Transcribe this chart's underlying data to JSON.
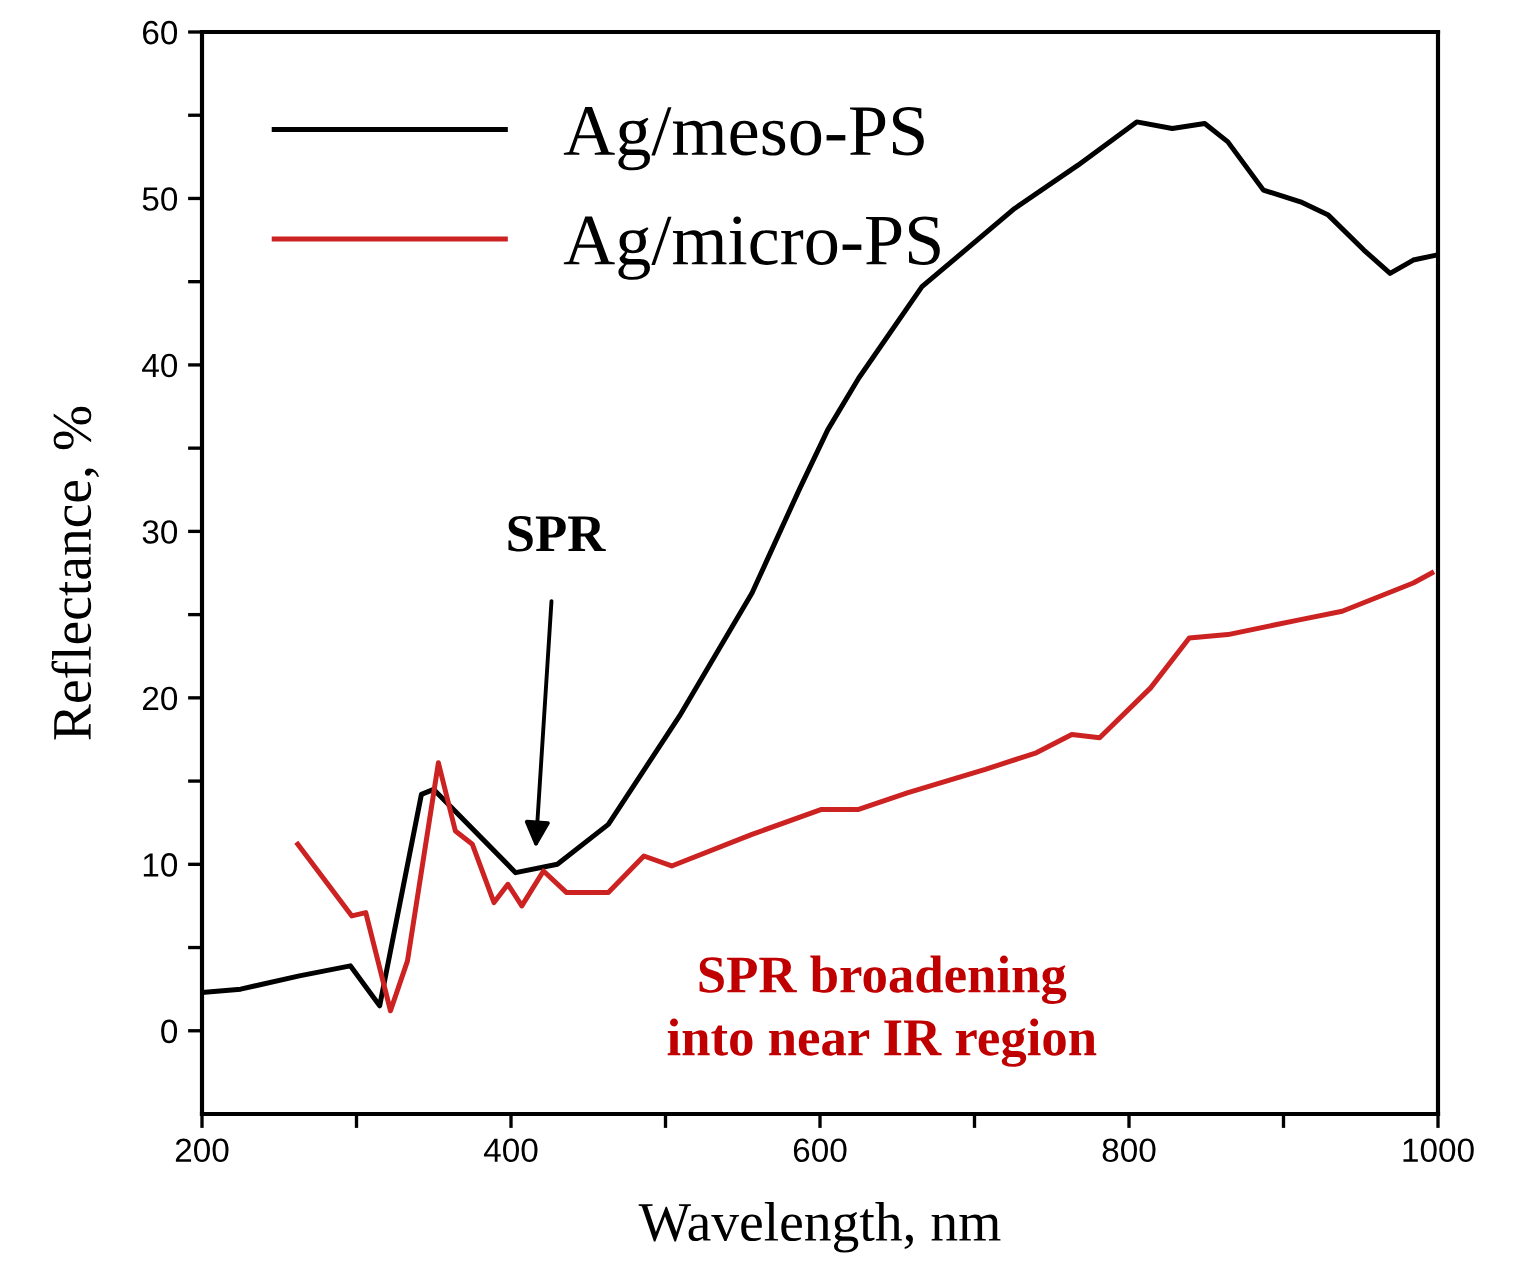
{
  "chart_data": {
    "type": "line",
    "xlabel": "Wavelength, nm",
    "ylabel": "Reflectance, %",
    "xlim": [
      200,
      1000
    ],
    "ylim": [
      -5,
      60
    ],
    "xticks": [
      200,
      {
        "value": 300,
        "label": null
      },
      400,
      {
        "value": 500,
        "label": null
      },
      600,
      {
        "value": 700,
        "label": null
      },
      800,
      {
        "value": 900,
        "label": null
      },
      1000
    ],
    "yticks": [
      0,
      {
        "value": 5,
        "label": null
      },
      10,
      {
        "value": 15,
        "label": null
      },
      20,
      {
        "value": 25,
        "label": null
      },
      30,
      {
        "value": 35,
        "label": null
      },
      40,
      {
        "value": 45,
        "label": null
      },
      50,
      {
        "value": 55,
        "label": null
      },
      60
    ],
    "grid": false,
    "legend": "top left",
    "marker": "none",
    "line_style": "solid",
    "series": [
      {
        "name": "Ag/meso-PS",
        "color": "#000000",
        "x": [
          200,
          225,
          263,
          296,
          315,
          342,
          350,
          403,
          430,
          463,
          509,
          556,
          587,
          605,
          625,
          666,
          726,
          767,
          805,
          828,
          849,
          864,
          887,
          911,
          929,
          952,
          969,
          984,
          999
        ],
        "values": [
          2.3,
          2.5,
          3.3,
          3.9,
          1.5,
          14.2,
          14.5,
          9.5,
          10,
          12.4,
          18.9,
          26.3,
          32.6,
          36.1,
          39.2,
          44.7,
          49.4,
          52,
          54.6,
          54.2,
          54.5,
          53.4,
          50.5,
          49.8,
          49,
          46.9,
          45.5,
          46.3,
          46.6
        ]
      },
      {
        "name": "Ag/micro-PS",
        "color": "#cc2222",
        "x": [
          262,
          297,
          306,
          322,
          333,
          353,
          364,
          375,
          389,
          398,
          407,
          421,
          436,
          463,
          486,
          504,
          556,
          601,
          625,
          657,
          707,
          740,
          763,
          781,
          814,
          839,
          864,
          911,
          938,
          984,
          996
        ],
        "values": [
          11.2,
          6.9,
          7.1,
          1.2,
          4.2,
          16.1,
          12,
          11.2,
          7.7,
          8.8,
          7.5,
          9.6,
          8.3,
          8.3,
          10.5,
          9.9,
          11.8,
          13.3,
          13.3,
          14.3,
          15.7,
          16.7,
          17.8,
          17.6,
          20.6,
          23.6,
          23.8,
          24.7,
          25.2,
          26.9,
          27.5
        ]
      }
    ],
    "annotations": [
      "SPR",
      "SPR broadening\ninto near IR region"
    ]
  }
}
